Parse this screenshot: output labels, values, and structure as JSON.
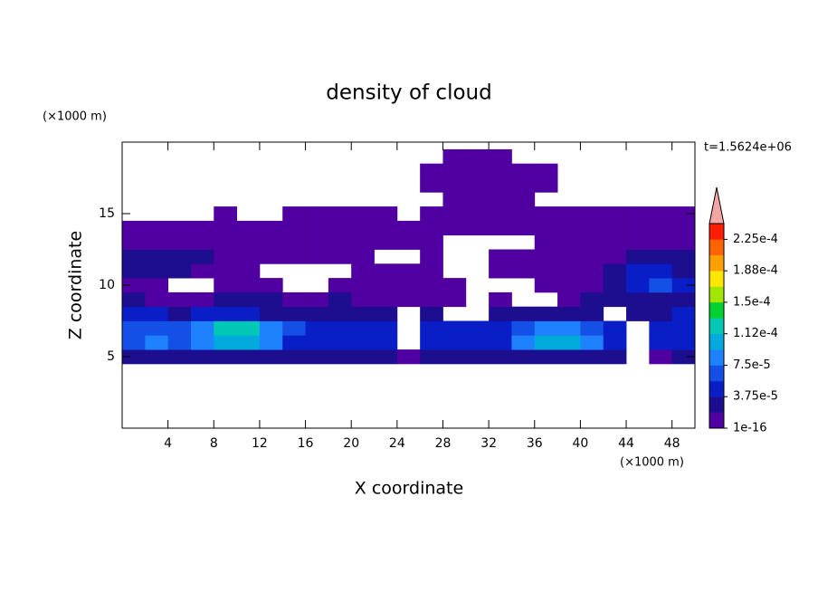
{
  "chart_data": {
    "type": "contour",
    "title": "density of cloud",
    "xlabel": "X coordinate",
    "ylabel": "Z coordinate",
    "x_unit": "(×1000 m)",
    "y_unit": "(×1000 m)",
    "time_label": "t=1.5624e+06",
    "xlim": [
      0,
      50
    ],
    "ylim": [
      0,
      20
    ],
    "xticks": [
      4,
      8,
      12,
      16,
      20,
      24,
      28,
      32,
      36,
      40,
      44,
      48
    ],
    "yticks": [
      5,
      10,
      15
    ],
    "x": [
      1,
      3,
      5,
      7,
      9,
      11,
      13,
      15,
      17,
      19,
      21,
      23,
      25,
      27,
      29,
      31,
      33,
      35,
      37,
      39,
      41,
      43,
      45,
      47,
      49
    ],
    "z": [
      5,
      6,
      7,
      8,
      9,
      10,
      11,
      12,
      13,
      14,
      15,
      16,
      17,
      18,
      19
    ],
    "values": [
      [
        2.5e-05,
        2.5e-05,
        2.5e-05,
        2.5e-05,
        2.5e-05,
        2.5e-05,
        2.5e-05,
        2.5e-05,
        2.5e-05,
        2.5e-05,
        2.5e-05,
        2.5e-05,
        1e-05,
        2.5e-05,
        2.5e-05,
        2.5e-05,
        2.5e-05,
        2.5e-05,
        2.5e-05,
        2.5e-05,
        2.5e-05,
        2.5e-05,
        null,
        1e-05,
        2.5e-05
      ],
      [
        6.5e-05,
        8.5e-05,
        6.5e-05,
        8.5e-05,
        0.000105,
        0.000105,
        8.5e-05,
        4.5e-05,
        4.5e-05,
        4.5e-05,
        4.5e-05,
        4.5e-05,
        null,
        4.5e-05,
        4.5e-05,
        4.5e-05,
        4.5e-05,
        8.5e-05,
        0.000105,
        0.000105,
        8.5e-05,
        4.5e-05,
        null,
        4.5e-05,
        4.5e-05
      ],
      [
        6.5e-05,
        6.5e-05,
        6.5e-05,
        8.5e-05,
        0.00013,
        0.00013,
        8.5e-05,
        6.5e-05,
        4.5e-05,
        4.5e-05,
        4.5e-05,
        4.5e-05,
        null,
        4.5e-05,
        4.5e-05,
        4.5e-05,
        4.5e-05,
        6.5e-05,
        8.5e-05,
        8.5e-05,
        6.5e-05,
        4.5e-05,
        null,
        4.5e-05,
        4.5e-05
      ],
      [
        4.5e-05,
        4.5e-05,
        2.5e-05,
        4.5e-05,
        4.5e-05,
        4.5e-05,
        2.5e-05,
        2.5e-05,
        2.5e-05,
        2.5e-05,
        2.5e-05,
        2.5e-05,
        null,
        2.5e-05,
        null,
        null,
        2.5e-05,
        2.5e-05,
        2.5e-05,
        2.5e-05,
        2.5e-05,
        null,
        2.5e-05,
        2.5e-05,
        4.5e-05
      ],
      [
        2.5e-05,
        1e-05,
        1e-05,
        1e-05,
        2.5e-05,
        2.5e-05,
        2.5e-05,
        1e-05,
        1e-05,
        2.5e-05,
        1e-05,
        1e-05,
        1e-05,
        1e-05,
        1e-05,
        null,
        1e-05,
        null,
        null,
        1e-05,
        2.5e-05,
        2.5e-05,
        2.5e-05,
        2.5e-05,
        2.5e-05
      ],
      [
        1e-05,
        1e-05,
        null,
        null,
        1e-05,
        1e-05,
        1e-05,
        null,
        null,
        1e-05,
        1e-05,
        1e-05,
        1e-05,
        1e-05,
        1e-05,
        null,
        null,
        null,
        1e-05,
        1e-05,
        1e-05,
        2.5e-05,
        4.5e-05,
        6.5e-05,
        4.5e-05
      ],
      [
        2.5e-05,
        2.5e-05,
        2.5e-05,
        1e-05,
        1e-05,
        1e-05,
        null,
        null,
        null,
        null,
        1e-05,
        1e-05,
        1e-05,
        1e-05,
        null,
        null,
        1e-05,
        1e-05,
        1e-05,
        1e-05,
        1e-05,
        2.5e-05,
        4.5e-05,
        4.5e-05,
        2.5e-05
      ],
      [
        2.5e-05,
        2.5e-05,
        2.5e-05,
        2.5e-05,
        1e-05,
        1e-05,
        1e-05,
        1e-05,
        1e-05,
        1e-05,
        1e-05,
        null,
        null,
        1e-05,
        null,
        null,
        1e-05,
        1e-05,
        1e-05,
        1e-05,
        1e-05,
        1e-05,
        2.5e-05,
        2.5e-05,
        2.5e-05
      ],
      [
        1e-05,
        1e-05,
        1e-05,
        1e-05,
        1e-05,
        1e-05,
        1e-05,
        1e-05,
        1e-05,
        1e-05,
        1e-05,
        1e-05,
        1e-05,
        1e-05,
        null,
        null,
        null,
        null,
        1e-05,
        1e-05,
        1e-05,
        1e-05,
        1e-05,
        1e-05,
        1e-05
      ],
      [
        1e-05,
        1e-05,
        1e-05,
        1e-05,
        1e-05,
        1e-05,
        1e-05,
        1e-05,
        1e-05,
        1e-05,
        1e-05,
        1e-05,
        1e-05,
        1e-05,
        1e-05,
        1e-05,
        1e-05,
        1e-05,
        1e-05,
        1e-05,
        1e-05,
        1e-05,
        1e-05,
        1e-05,
        1e-05
      ],
      [
        null,
        null,
        null,
        null,
        1e-05,
        null,
        null,
        1e-05,
        1e-05,
        1e-05,
        1e-05,
        1e-05,
        null,
        1e-05,
        1e-05,
        1e-05,
        1e-05,
        1e-05,
        1e-05,
        1e-05,
        1e-05,
        1e-05,
        1e-05,
        1e-05,
        1e-05
      ],
      [
        null,
        null,
        null,
        null,
        null,
        null,
        null,
        null,
        null,
        null,
        null,
        null,
        null,
        null,
        1e-05,
        1e-05,
        1e-05,
        1e-05,
        null,
        null,
        null,
        null,
        null,
        null,
        null
      ],
      [
        null,
        null,
        null,
        null,
        null,
        null,
        null,
        null,
        null,
        null,
        null,
        null,
        null,
        1e-05,
        1e-05,
        1e-05,
        1e-05,
        1e-05,
        1e-05,
        null,
        null,
        null,
        null,
        null,
        null
      ],
      [
        null,
        null,
        null,
        null,
        null,
        null,
        null,
        null,
        null,
        null,
        null,
        null,
        null,
        1e-05,
        1e-05,
        1e-05,
        1e-05,
        1e-05,
        1e-05,
        null,
        null,
        null,
        null,
        null,
        null
      ],
      [
        null,
        null,
        null,
        null,
        null,
        null,
        null,
        null,
        null,
        null,
        null,
        null,
        null,
        null,
        1e-05,
        1e-05,
        1e-05,
        null,
        null,
        null,
        null,
        null,
        null,
        null,
        null
      ]
    ],
    "colorbar": {
      "levels": [
        1e-16,
        1.875e-05,
        3.75e-05,
        5.625e-05,
        7.5e-05,
        9.375e-05,
        0.0001125,
        0.00013125,
        0.00015,
        0.00016875,
        0.0001875,
        0.00020625,
        0.000225,
        0.00024375
      ],
      "colors": [
        "#5000a0",
        "#1c0e8e",
        "#0a1ec8",
        "#1450e6",
        "#1e82ff",
        "#00aadc",
        "#00c8b4",
        "#00d232",
        "#a0e600",
        "#ffe600",
        "#ffa000",
        "#ff6400",
        "#ff1e00"
      ],
      "extend_color": "#f4a6a6",
      "ticks": [
        {
          "value": 1e-16,
          "label": "1e-16"
        },
        {
          "value": 3.75e-05,
          "label": "3.75e-5"
        },
        {
          "value": 7.5e-05,
          "label": "7.5e-5"
        },
        {
          "value": 0.0001125,
          "label": "1.12e-4"
        },
        {
          "value": 0.00015,
          "label": "1.5e-4"
        },
        {
          "value": 0.0001875,
          "label": "1.88e-4"
        },
        {
          "value": 0.000225,
          "label": "2.25e-4"
        }
      ]
    }
  }
}
